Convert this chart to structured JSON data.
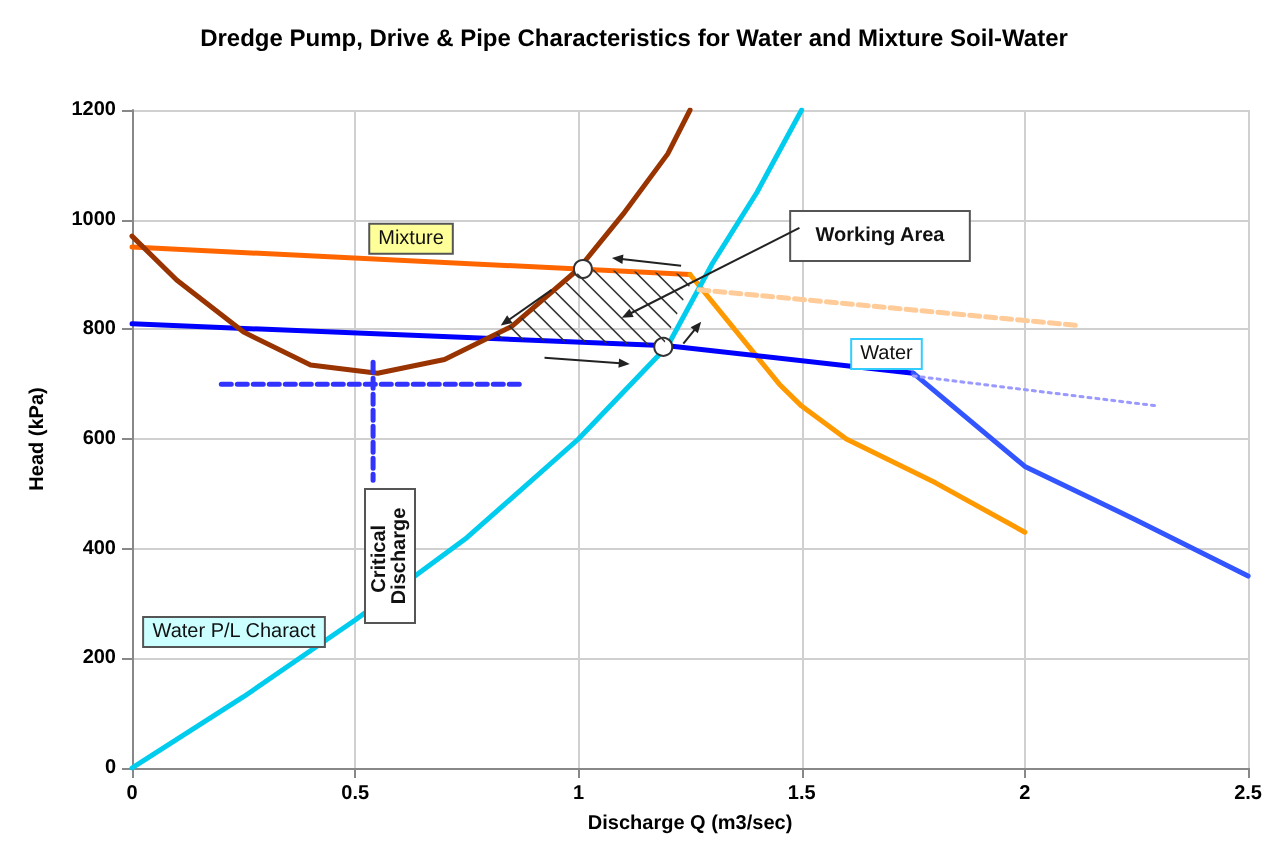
{
  "chart_data": {
    "type": "line",
    "title": "Dredge Pump, Drive & Pipe Characteristics for Water and Mixture Soil-Water",
    "xlabel": "Discharge Q (m3/sec)",
    "ylabel": "Head (kPa)",
    "xlim": [
      0,
      2.5
    ],
    "xticks": [
      0,
      0.5,
      1,
      1.5,
      2,
      2.5
    ],
    "ylim": [
      0,
      1200
    ],
    "yticks": [
      0,
      200,
      400,
      600,
      800,
      1000,
      1200
    ],
    "grid": true,
    "marker": "none",
    "line_style": "solid",
    "series": [
      {
        "color": "#ff6600",
        "x": [
          0,
          1.25
        ],
        "values": [
          950,
          900
        ]
      },
      {
        "color": "#ff9900",
        "x": [
          1.25,
          1.35,
          1.45,
          1.5,
          1.6,
          1.8,
          2
        ],
        "values": [
          900,
          800,
          700,
          660,
          600,
          520,
          430
        ]
      },
      {
        "color": "#0000ff",
        "x": [
          0,
          1.2,
          1.75
        ],
        "values": [
          810,
          770,
          720
        ]
      },
      {
        "color": "#3355ff",
        "x": [
          1.75,
          2,
          2.25,
          2.5
        ],
        "values": [
          720,
          550,
          452,
          350
        ]
      },
      {
        "color": "#00ccee",
        "x": [
          0,
          0.25,
          0.5,
          0.75,
          1,
          1.2,
          1.3,
          1.4,
          1.5
        ],
        "values": [
          0,
          130,
          270,
          420,
          600,
          770,
          920,
          1050,
          1200
        ]
      },
      {
        "color": "#993300",
        "x": [
          0,
          0.1,
          0.25,
          0.4,
          0.55,
          0.7,
          0.85,
          1,
          1.1,
          1.2,
          1.25
        ],
        "values": [
          970,
          890,
          795,
          735,
          720,
          745,
          805,
          910,
          1010,
          1120,
          1200
        ]
      },
      {
        "color": "#ffcc99",
        "line_style": "dashed",
        "x": [
          1.27,
          2.12
        ],
        "values": [
          872,
          807
        ]
      },
      {
        "color": "#9999ff",
        "line_style": "dotted",
        "x": [
          1.75,
          2.3
        ],
        "values": [
          715,
          660
        ]
      },
      {
        "color": "#3333ff",
        "line_style": "dashed",
        "x": [
          0.2,
          0.88
        ],
        "values": [
          700,
          700
        ]
      },
      {
        "color": "#3333ff",
        "line_style": "dashed",
        "x": [
          0.54,
          0.54
        ],
        "values": [
          740,
          525
        ]
      },
      {
        "type": "scatter",
        "marker": "circle",
        "color": "#ffffff",
        "x": [
          1.01,
          1.19
        ],
        "values": [
          910,
          768
        ]
      }
    ],
    "annotations": [
      {
        "text": "Mixture",
        "x": 0.625,
        "y": 965
      },
      {
        "text": "Water",
        "x": 1.69,
        "y": 755
      },
      "Working Area",
      "Critical Discharge",
      "Water P/L Charact"
    ]
  }
}
